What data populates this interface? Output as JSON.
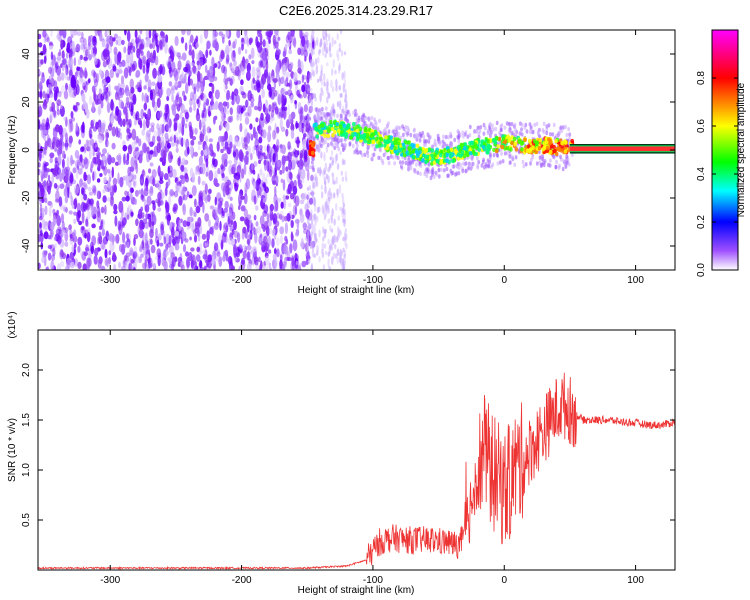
{
  "chart_data": [
    {
      "type": "heatmap",
      "title": "C2E6.2025.314.23.29.R17",
      "xlabel": "Height of straight line (km)",
      "ylabel": "Frequency (Hz)",
      "xlim": [
        -355,
        130
      ],
      "ylim": [
        -50,
        50
      ],
      "x_ticks": [
        -300,
        -200,
        -100,
        0,
        100
      ],
      "y_ticks": [
        -40,
        -20,
        0,
        20,
        40
      ],
      "reference_line_y": 0,
      "colorbar": {
        "label": "Normalized spectral amplitude",
        "range": [
          0,
          1
        ],
        "ticks": [
          0.0,
          0.2,
          0.4,
          0.6,
          0.8
        ],
        "colors": [
          "#ffffff",
          "#8000ff",
          "#0000ff",
          "#00ffff",
          "#00ff00",
          "#ffff00",
          "#ff8000",
          "#ff0000",
          "#ff00ff"
        ]
      },
      "signal_track": [
        {
          "x": -145,
          "freq": 8,
          "amp": 0.5
        },
        {
          "x": -130,
          "freq": 9,
          "amp": 0.6
        },
        {
          "x": -115,
          "freq": 8,
          "amp": 0.55
        },
        {
          "x": -100,
          "freq": 5,
          "amp": 0.6
        },
        {
          "x": -85,
          "freq": 2,
          "amp": 0.55
        },
        {
          "x": -70,
          "freq": 0,
          "amp": 0.5
        },
        {
          "x": -55,
          "freq": -3,
          "amp": 0.6
        },
        {
          "x": -40,
          "freq": -2,
          "amp": 0.55
        },
        {
          "x": -25,
          "freq": 1,
          "amp": 0.55
        },
        {
          "x": -10,
          "freq": 2,
          "amp": 0.6
        },
        {
          "x": 0,
          "freq": 3,
          "amp": 0.65
        },
        {
          "x": 15,
          "freq": 2,
          "amp": 0.7
        },
        {
          "x": 30,
          "freq": 2,
          "amp": 0.75
        },
        {
          "x": 45,
          "freq": 1,
          "amp": 0.8
        },
        {
          "x": 60,
          "freq": 0.5,
          "amp": 0.9
        },
        {
          "x": 90,
          "freq": 0.5,
          "amp": 0.95
        },
        {
          "x": 130,
          "freq": 0.5,
          "amp": 0.95
        }
      ]
    },
    {
      "type": "line",
      "xlabel": "Height of straight line (km)",
      "ylabel": "SNR (10 * v/v)",
      "y_multiplier": "(x10⁴)",
      "xlim": [
        -355,
        130
      ],
      "ylim": [
        0,
        2.4
      ],
      "x_ticks": [
        -300,
        -200,
        -100,
        0,
        100
      ],
      "y_ticks": [
        0.5,
        1.0,
        1.5,
        2.0
      ],
      "color": "#ee3333",
      "series": [
        {
          "x": [
            -355,
            -300,
            -250,
            -200,
            -150,
            -120,
            -105,
            -95,
            -85,
            -75,
            -65,
            -55,
            -45,
            -35,
            -30,
            -25,
            -20,
            -15,
            -10,
            -5,
            0,
            5,
            10,
            15,
            20,
            25,
            30,
            35,
            40,
            45,
            50,
            55,
            60,
            70,
            80,
            90,
            100,
            110,
            120,
            130
          ],
          "y": [
            0.02,
            0.02,
            0.02,
            0.02,
            0.02,
            0.04,
            0.1,
            0.28,
            0.32,
            0.3,
            0.3,
            0.3,
            0.28,
            0.25,
            0.35,
            0.7,
            1.0,
            1.2,
            1.0,
            0.9,
            0.8,
            0.9,
            1.05,
            1.1,
            1.2,
            1.3,
            1.4,
            1.5,
            1.6,
            1.65,
            1.6,
            1.55,
            1.5,
            1.5,
            1.5,
            1.48,
            1.47,
            1.45,
            1.45,
            1.48
          ]
        }
      ]
    }
  ]
}
